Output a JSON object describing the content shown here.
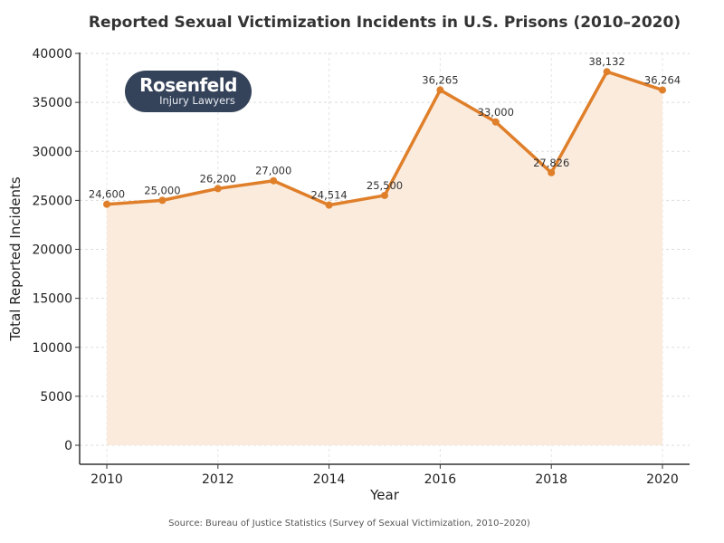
{
  "chart_data": {
    "type": "area",
    "title": "Reported Sexual Victimization Incidents in U.S. Prisons (2010–2020)",
    "xlabel": "Year",
    "ylabel": "Total Reported Incidents",
    "x": [
      2010,
      2011,
      2012,
      2013,
      2014,
      2015,
      2016,
      2017,
      2018,
      2019,
      2020
    ],
    "values": [
      24600,
      25000,
      26200,
      27000,
      24514,
      25500,
      36265,
      33000,
      27826,
      38132,
      36264
    ],
    "data_labels": [
      "24,600",
      "25,000",
      "26,200",
      "27,000",
      "24,514",
      "25,500",
      "36,265",
      "33,000",
      "27,826",
      "38,132",
      "36,264"
    ],
    "xticks": [
      "2010",
      "2012",
      "2014",
      "2016",
      "2018",
      "2020"
    ],
    "yticks": [
      "0",
      "5000",
      "10000",
      "15000",
      "20000",
      "25000",
      "30000",
      "35000",
      "40000"
    ],
    "xlim": [
      2009.5,
      2020.5
    ],
    "ylim": [
      -2000,
      40000
    ],
    "grid": true,
    "line_color": "#e07f2a",
    "fill_color": "#faebdd",
    "source": "Source: Bureau of Justice Statistics (Survey of Sexual Victimization, 2010–2020)"
  },
  "logo": {
    "line1": "Rosenfeld",
    "line2": "Injury Lawyers",
    "color": "#35435a"
  }
}
